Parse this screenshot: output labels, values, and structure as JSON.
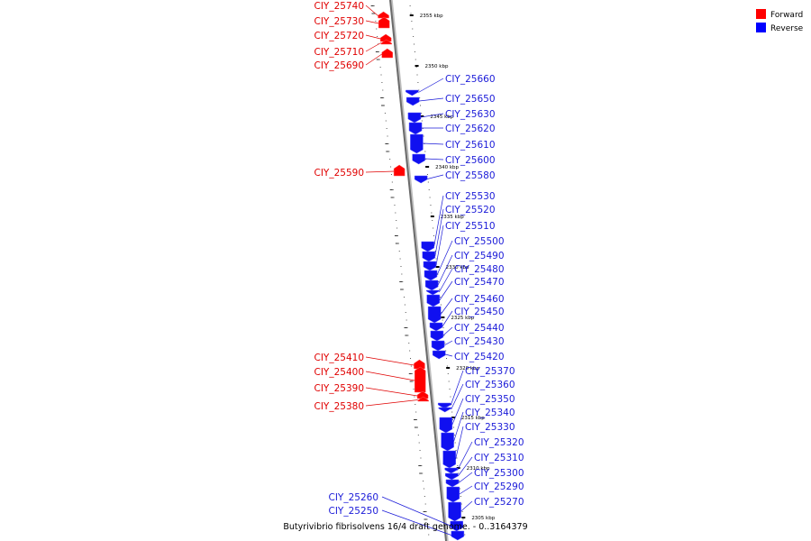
{
  "caption": "Butyrivibrio fibrisolvens 16/4 draft genome. - 0..3164379",
  "legend": [
    {
      "label": "Forward",
      "color": "#ff0000"
    },
    {
      "label": "Reverse",
      "color": "#0000ff"
    }
  ],
  "ticks": [
    "2355 kbp",
    "2350 kbp",
    "2345 kbp",
    "2340 kbp",
    "2335 kbp",
    "2330 kbp",
    "2325 kbp",
    "2320 kbp",
    "2315 kbp",
    "2310 kbp",
    "2305 kbp"
  ],
  "forward_genes": [
    "CIY_25740",
    "CIY_25730",
    "CIY_25720",
    "CIY_25710",
    "CIY_25690",
    "CIY_25590",
    "CIY_25410",
    "CIY_25400",
    "CIY_25390",
    "CIY_25380"
  ],
  "reverse_genes": [
    "CIY_25660",
    "CIY_25650",
    "CIY_25630",
    "CIY_25620",
    "CIY_25610",
    "CIY_25600",
    "CIY_25580",
    "CIY_25530",
    "CIY_25520",
    "CIY_25510",
    "CIY_25500",
    "CIY_25490",
    "CIY_25480",
    "CIY_25470",
    "CIY_25460",
    "CIY_25450",
    "CIY_25440",
    "CIY_25430",
    "CIY_25420",
    "CIY_25370",
    "CIY_25360",
    "CIY_25350",
    "CIY_25340",
    "CIY_25330",
    "CIY_25320",
    "CIY_25310",
    "CIY_25300",
    "CIY_25290",
    "CIY_25270",
    "CIY_25260",
    "CIY_25250"
  ]
}
